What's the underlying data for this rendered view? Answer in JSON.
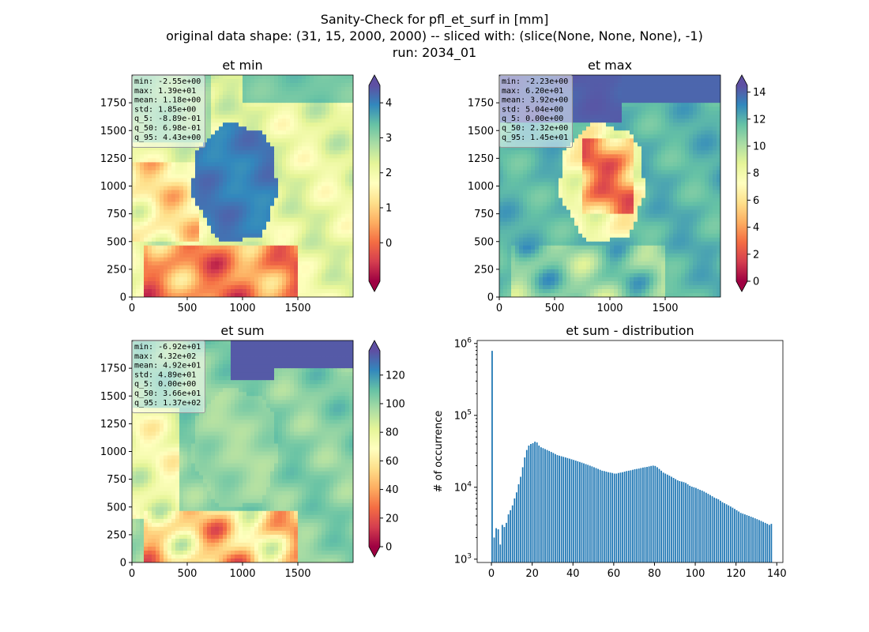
{
  "figure": {
    "title_lines": [
      "Sanity-Check for pfl_et_surf in [mm]",
      "original data shape: (31, 15, 2000, 2000) -- sliced with: (slice(None, None, None), -1)",
      "run: 2034_01"
    ]
  },
  "colors": {
    "spectral": [
      "#9e0142",
      "#d53e4f",
      "#f46d43",
      "#fdae61",
      "#fee08b",
      "#ffffbf",
      "#e6f598",
      "#abdda4",
      "#66c2a5",
      "#3288bd",
      "#5e4fa2"
    ],
    "hist_bar": "#1f77b4"
  },
  "chart_data": [
    {
      "type": "heatmap",
      "title": "et min",
      "colormap": "Spectral",
      "xlim": [
        0,
        2000
      ],
      "ylim": [
        0,
        2000
      ],
      "xticks": [
        "0",
        "500",
        "1000",
        "1500"
      ],
      "yticks": [
        "0",
        "250",
        "500",
        "750",
        "1000",
        "1250",
        "1500",
        "1750"
      ],
      "clim": [
        -1.1,
        4.5
      ],
      "colorbar_ticks": [
        "4",
        "3",
        "2",
        "1",
        "0"
      ],
      "colorbar_tick_values": [
        4,
        3,
        2,
        1,
        0
      ],
      "stats": [
        "min: -2.55e+00",
        "max: 1.39e+01",
        "mean: 1.18e+00",
        "std: 1.85e+00",
        "q_5: -8.89e-01",
        "q_50: 6.98e-01",
        "q_95: 4.43e+00"
      ]
    },
    {
      "type": "heatmap",
      "title": "et max",
      "colormap": "Spectral",
      "xlim": [
        0,
        2000
      ],
      "ylim": [
        0,
        2000
      ],
      "xticks": [
        "0",
        "500",
        "1000",
        "1500"
      ],
      "yticks": [
        "0",
        "250",
        "500",
        "750",
        "1000",
        "1250",
        "1500",
        "1750"
      ],
      "clim": [
        0,
        14.5
      ],
      "colorbar_ticks": [
        "14",
        "12",
        "10",
        "8",
        "6",
        "4",
        "2",
        "0"
      ],
      "colorbar_tick_values": [
        14,
        12,
        10,
        8,
        6,
        4,
        2,
        0
      ],
      "stats": [
        "min: -2.23e+00",
        "max: 6.20e+01",
        "mean: 3.92e+00",
        "std: 5.04e+00",
        "q_5: 0.00e+00",
        "q_50: 2.32e+00",
        "q_95: 1.45e+01"
      ]
    },
    {
      "type": "heatmap",
      "title": "et sum",
      "colormap": "Spectral",
      "xlim": [
        0,
        2000
      ],
      "ylim": [
        0,
        2000
      ],
      "xticks": [
        "0",
        "500",
        "1000",
        "1500"
      ],
      "yticks": [
        "0",
        "250",
        "500",
        "750",
        "1000",
        "1250",
        "1500",
        "1750"
      ],
      "clim": [
        0,
        137
      ],
      "colorbar_ticks": [
        "120",
        "100",
        "80",
        "60",
        "40",
        "20",
        "0"
      ],
      "colorbar_tick_values": [
        120,
        100,
        80,
        60,
        40,
        20,
        0
      ],
      "stats": [
        "min: -6.92e+01",
        "max: 4.32e+02",
        "mean: 4.92e+01",
        "std: 4.89e+01",
        "q_5: 0.00e+00",
        "q_50: 3.66e+01",
        "q_95: 1.37e+02"
      ]
    },
    {
      "type": "bar",
      "title": "et sum - distribution",
      "ylabel": "# of occurrence",
      "xlim": [
        -7,
        143
      ],
      "yscale": "log",
      "ylim": [
        900,
        1100000
      ],
      "xticks": [
        0,
        20,
        40,
        60,
        80,
        100,
        120,
        140
      ],
      "xtick_labels": [
        "0",
        "20",
        "40",
        "60",
        "80",
        "100",
        "120",
        "140"
      ],
      "ytick_exponents": [
        "3",
        "4",
        "5",
        "6"
      ],
      "ytick_values": [
        1000,
        10000,
        100000,
        1000000
      ],
      "bin_width": 0.685,
      "bins": [
        [
          0,
          790000
        ],
        [
          1,
          2000
        ],
        [
          2,
          2700
        ],
        [
          3,
          2600
        ],
        [
          4,
          1600
        ],
        [
          5,
          3000
        ],
        [
          6,
          2800
        ],
        [
          7,
          3200
        ],
        [
          8,
          4200
        ],
        [
          9,
          4800
        ],
        [
          10,
          5600
        ],
        [
          11,
          7000
        ],
        [
          12,
          8500
        ],
        [
          13,
          11000
        ],
        [
          14,
          14000
        ],
        [
          15,
          19000
        ],
        [
          16,
          26000
        ],
        [
          17,
          33000
        ],
        [
          18,
          38000
        ],
        [
          19,
          40000
        ],
        [
          20,
          41000
        ],
        [
          21,
          43000
        ],
        [
          22,
          42000
        ],
        [
          23,
          38000
        ],
        [
          24,
          36000
        ],
        [
          25,
          35000
        ],
        [
          26,
          34000
        ],
        [
          27,
          33000
        ],
        [
          28,
          32000
        ],
        [
          29,
          31000
        ],
        [
          30,
          30000
        ],
        [
          31,
          29000
        ],
        [
          32,
          28000
        ],
        [
          33,
          27500
        ],
        [
          34,
          27000
        ],
        [
          35,
          26500
        ],
        [
          36,
          26000
        ],
        [
          37,
          25500
        ],
        [
          38,
          25000
        ],
        [
          39,
          24500
        ],
        [
          40,
          24000
        ],
        [
          41,
          23500
        ],
        [
          42,
          23000
        ],
        [
          43,
          22500
        ],
        [
          44,
          22000
        ],
        [
          45,
          21500
        ],
        [
          46,
          21000
        ],
        [
          47,
          20500
        ],
        [
          48,
          20000
        ],
        [
          49,
          19500
        ],
        [
          50,
          19000
        ],
        [
          51,
          18500
        ],
        [
          52,
          18000
        ],
        [
          53,
          17500
        ],
        [
          54,
          17000
        ],
        [
          55,
          16800
        ],
        [
          56,
          16500
        ],
        [
          57,
          16200
        ],
        [
          58,
          16000
        ],
        [
          59,
          15800
        ],
        [
          60,
          15500
        ],
        [
          61,
          15500
        ],
        [
          62,
          15800
        ],
        [
          63,
          16000
        ],
        [
          64,
          16200
        ],
        [
          65,
          16500
        ],
        [
          66,
          16800
        ],
        [
          67,
          17000
        ],
        [
          68,
          17200
        ],
        [
          69,
          17500
        ],
        [
          70,
          17800
        ],
        [
          71,
          18000
        ],
        [
          72,
          18200
        ],
        [
          73,
          18500
        ],
        [
          74,
          18800
        ],
        [
          75,
          19000
        ],
        [
          76,
          19200
        ],
        [
          77,
          19500
        ],
        [
          78,
          19800
        ],
        [
          79,
          20000
        ],
        [
          80,
          19800
        ],
        [
          81,
          19000
        ],
        [
          82,
          18000
        ],
        [
          83,
          17000
        ],
        [
          84,
          16000
        ],
        [
          85,
          15500
        ],
        [
          86,
          15000
        ],
        [
          87,
          14500
        ],
        [
          88,
          14000
        ],
        [
          89,
          13500
        ],
        [
          90,
          13000
        ],
        [
          91,
          12500
        ],
        [
          92,
          12200
        ],
        [
          93,
          12000
        ],
        [
          94,
          11800
        ],
        [
          95,
          11500
        ],
        [
          96,
          11000
        ],
        [
          97,
          10500
        ],
        [
          98,
          10200
        ],
        [
          99,
          10000
        ],
        [
          100,
          9800
        ],
        [
          101,
          9500
        ],
        [
          102,
          9200
        ],
        [
          103,
          9000
        ],
        [
          104,
          8700
        ],
        [
          105,
          8400
        ],
        [
          106,
          8100
        ],
        [
          107,
          7800
        ],
        [
          108,
          7500
        ],
        [
          109,
          7200
        ],
        [
          110,
          7000
        ],
        [
          111,
          6800
        ],
        [
          112,
          6500
        ],
        [
          113,
          6200
        ],
        [
          114,
          6000
        ],
        [
          115,
          5800
        ],
        [
          116,
          5600
        ],
        [
          117,
          5400
        ],
        [
          118,
          5200
        ],
        [
          119,
          5000
        ],
        [
          120,
          4800
        ],
        [
          121,
          4600
        ],
        [
          122,
          4400
        ],
        [
          123,
          4300
        ],
        [
          124,
          4200
        ],
        [
          125,
          4100
        ],
        [
          126,
          4000
        ],
        [
          127,
          3900
        ],
        [
          128,
          3800
        ],
        [
          129,
          3700
        ],
        [
          130,
          3600
        ],
        [
          131,
          3500
        ],
        [
          132,
          3400
        ],
        [
          133,
          3300
        ],
        [
          134,
          3200
        ],
        [
          135,
          3100
        ],
        [
          136,
          3000
        ],
        [
          137,
          3100
        ]
      ]
    }
  ]
}
